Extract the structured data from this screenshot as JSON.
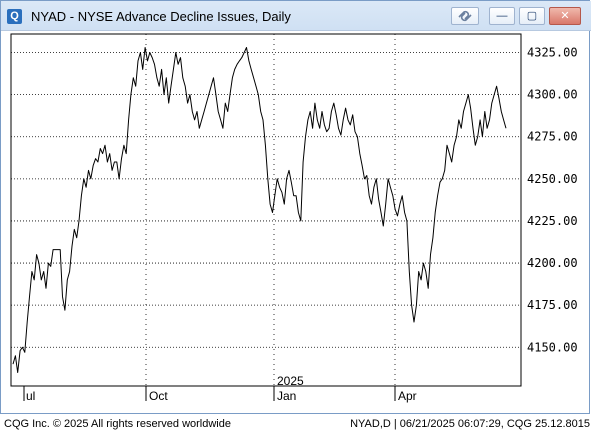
{
  "window": {
    "title": "NYAD - NYSE Advance Decline Issues, Daily",
    "icon_name": "app-logo-icon",
    "buttons": {
      "link": "link-icon",
      "minimize": "—",
      "maximize": "▢",
      "close": "✕"
    }
  },
  "footer": {
    "left": "CQG Inc. © 2025 All rights reserved worldwide",
    "right": "NYAD,D | 06/21/2025 06:07:29, CQG 25.12.8015"
  },
  "chart_data": {
    "type": "line",
    "title": "NYAD - NYSE Advance Decline Issues, Daily",
    "ylim": [
      4127,
      4336
    ],
    "y_ticks": [
      4150,
      4175,
      4200,
      4225,
      4250,
      4275,
      4300,
      4325
    ],
    "y_tick_labels": [
      "4150.00",
      "4175.00",
      "4200.00",
      "4225.00",
      "4250.00",
      "4275.00",
      "4300.00",
      "4325.00"
    ],
    "x_tick_labels": [
      "Jul",
      "Oct",
      "Jan",
      "Apr"
    ],
    "year_marker": "2025",
    "grid": true,
    "line_color": "#000000",
    "series": [
      {
        "values": [
          4140,
          4145,
          4135,
          4148,
          4150,
          4147,
          4165,
          4180,
          4195,
          4190,
          4205,
          4200,
          4190,
          4195,
          4185,
          4200,
          4198,
          4208,
          4208,
          4208,
          4208,
          4180,
          4172,
          4190,
          4195,
          4210,
          4220,
          4215,
          4225,
          4240,
          4250,
          4245,
          4255,
          4250,
          4258,
          4262,
          4260,
          4268,
          4265,
          4270,
          4260,
          4265,
          4255,
          4260,
          4260,
          4250,
          4262,
          4270,
          4265,
          4285,
          4300,
          4310,
          4305,
          4320,
          4325,
          4315,
          4328,
          4320,
          4325,
          4322,
          4318,
          4310,
          4305,
          4315,
          4300,
          4310,
          4295,
          4305,
          4315,
          4325,
          4318,
          4322,
          4310,
          4305,
          4295,
          4300,
          4290,
          4285,
          4290,
          4280,
          4285,
          4290,
          4295,
          4300,
          4305,
          4310,
          4300,
          4290,
          4285,
          4280,
          4295,
          4290,
          4300,
          4310,
          4315,
          4318,
          4320,
          4322,
          4325,
          4328,
          4320,
          4315,
          4310,
          4305,
          4300,
          4290,
          4285,
          4270,
          4250,
          4235,
          4230,
          4240,
          4250,
          4245,
          4242,
          4235,
          4250,
          4255,
          4248,
          4240,
          4240,
          4230,
          4225,
          4260,
          4275,
          4285,
          4290,
          4280,
          4295,
          4285,
          4280,
          4290,
          4282,
          4278,
          4280,
          4290,
          4295,
          4288,
          4280,
          4276,
          4285,
          4292,
          4285,
          4282,
          4288,
          4278,
          4275,
          4265,
          4258,
          4250,
          4252,
          4240,
          4235,
          4245,
          4250,
          4238,
          4230,
          4222,
          4235,
          4250,
          4245,
          4240,
          4232,
          4228,
          4235,
          4240,
          4230,
          4225,
          4195,
          4175,
          4165,
          4175,
          4195,
          4190,
          4200,
          4195,
          4185,
          4205,
          4215,
          4230,
          4240,
          4248,
          4250,
          4255,
          4270,
          4265,
          4260,
          4270,
          4275,
          4285,
          4280,
          4290,
          4295,
          4300,
          4292,
          4280,
          4270,
          4275,
          4285,
          4275,
          4290,
          4280,
          4285,
          4295,
          4300,
          4305,
          4298,
          4290,
          4285,
          4280
        ]
      }
    ]
  }
}
